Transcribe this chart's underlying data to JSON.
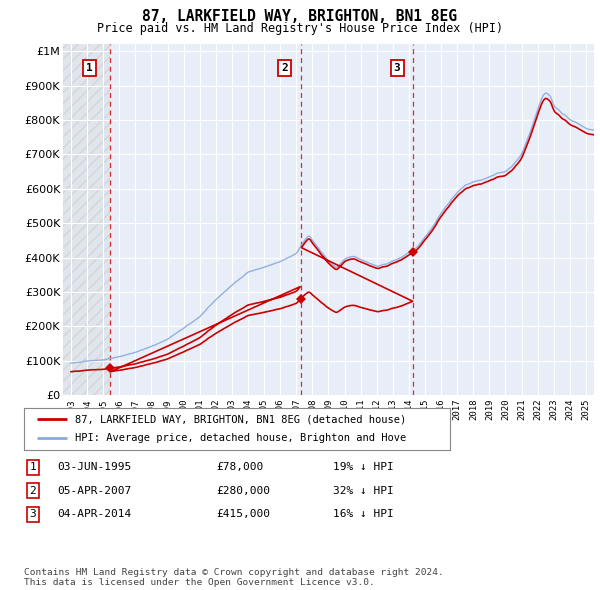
{
  "title": "87, LARKFIELD WAY, BRIGHTON, BN1 8EG",
  "subtitle": "Price paid vs. HM Land Registry's House Price Index (HPI)",
  "ytick_values": [
    0,
    100000,
    200000,
    300000,
    400000,
    500000,
    600000,
    700000,
    800000,
    900000,
    1000000
  ],
  "ylim": [
    0,
    1020000
  ],
  "xlim_start": 1992.5,
  "xlim_end": 2025.5,
  "hatch_end": 1995.4,
  "sale_dates": [
    1995.42,
    2007.26,
    2014.26
  ],
  "sale_prices": [
    78000,
    280000,
    415000
  ],
  "sale_labels": [
    "1",
    "2",
    "3"
  ],
  "sale_label_color": "#cc0000",
  "vline_color": "#cc0000",
  "hpi_color": "#88aadd",
  "price_line_color": "#cc0000",
  "legend_entries": [
    "87, LARKFIELD WAY, BRIGHTON, BN1 8EG (detached house)",
    "HPI: Average price, detached house, Brighton and Hove"
  ],
  "table_data": [
    [
      "1",
      "03-JUN-1995",
      "£78,000",
      "19% ↓ HPI"
    ],
    [
      "2",
      "05-APR-2007",
      "£280,000",
      "32% ↓ HPI"
    ],
    [
      "3",
      "04-APR-2014",
      "£415,000",
      "16% ↓ HPI"
    ]
  ],
  "footnote": "Contains HM Land Registry data © Crown copyright and database right 2024.\nThis data is licensed under the Open Government Licence v3.0.",
  "background_color": "#ffffff",
  "plot_bg_color": "#e8eef8",
  "grid_color": "#ffffff"
}
